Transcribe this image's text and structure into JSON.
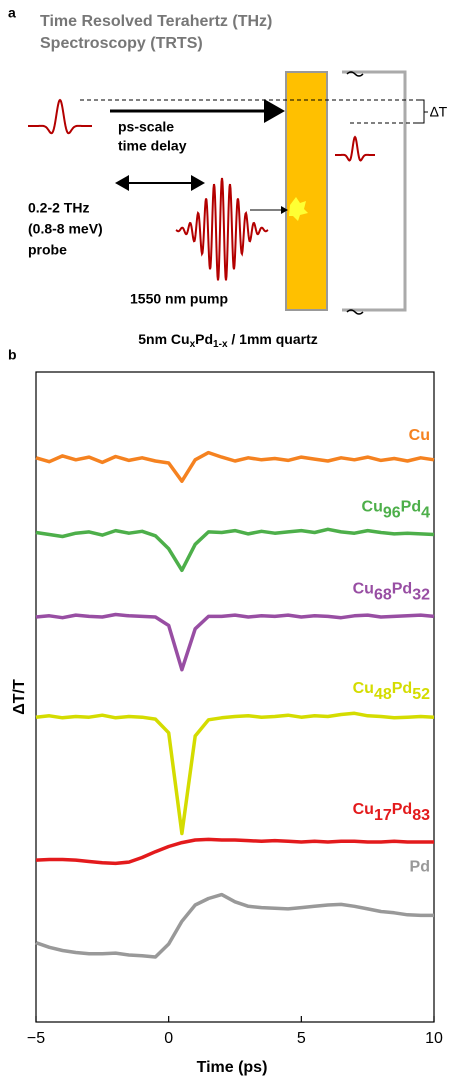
{
  "panel_a": {
    "label": "a",
    "title_lines": [
      "Time Resolved Terahertz (THz)",
      "Spectroscopy (TRTS)"
    ],
    "delay_lines": [
      "ps-scale",
      "time delay"
    ],
    "probe_lines": [
      "0.2-2 THz",
      "(0.8-8 meV)",
      "probe"
    ],
    "pump": "1550 nm pump",
    "delta": "∆T",
    "sample_parts": [
      "5nm Cu",
      "x",
      "Pd",
      "1-x",
      " / 1mm quartz"
    ]
  },
  "chart_data": {
    "type": "line",
    "panel_label": "b",
    "xlabel": "Time (ps)",
    "ylabel": "ΔT/T",
    "x": [
      -5,
      -4.5,
      -4,
      -3.5,
      -3,
      -2.5,
      -2,
      -1.5,
      -1,
      -0.5,
      0,
      0.5,
      1,
      1.5,
      2,
      2.5,
      3,
      3.5,
      4,
      4.5,
      5,
      5.5,
      6,
      6.5,
      7,
      7.5,
      8,
      8.5,
      9,
      9.5,
      10
    ],
    "xlim": [
      -5,
      10
    ],
    "xticks": [
      {
        "value": -5,
        "label": "−5"
      },
      0,
      5,
      10
    ],
    "ylim": [
      0,
      100
    ],
    "series": [
      {
        "name": "Cu",
        "color": "#f58220",
        "values": [
          86.8,
          86.2,
          87.1,
          86.5,
          86.9,
          86.1,
          87.0,
          86.4,
          86.8,
          86.3,
          86.0,
          83.2,
          86.5,
          87.6,
          86.9,
          86.3,
          86.8,
          86.5,
          86.7,
          86.4,
          86.9,
          86.6,
          86.3,
          86.8,
          86.5,
          86.9,
          86.4,
          86.7,
          86.3,
          86.8,
          86.5
        ]
      },
      {
        "name": "Cu96Pd4",
        "color": "#4daf4a",
        "values": [
          75.3,
          75.0,
          74.7,
          75.2,
          75.4,
          74.9,
          75.6,
          75.2,
          75.5,
          74.8,
          72.8,
          69.5,
          73.5,
          75.4,
          75.3,
          75.6,
          75.1,
          75.5,
          75.2,
          75.4,
          75.6,
          75.3,
          75.8,
          75.4,
          75.2,
          75.6,
          75.3,
          75.1,
          75.2,
          75.1,
          75.0
        ]
      },
      {
        "name": "Cu68Pd32",
        "color": "#984ea3",
        "values": [
          62.3,
          62.5,
          62.2,
          62.6,
          62.4,
          62.3,
          62.7,
          62.5,
          62.4,
          62.3,
          61.0,
          54.2,
          60.5,
          62.4,
          62.4,
          62.6,
          62.3,
          62.5,
          62.4,
          62.6,
          62.3,
          62.5,
          62.4,
          62.2,
          62.5,
          62.6,
          62.3,
          62.4,
          62.5,
          62.6,
          62.4
        ]
      },
      {
        "name": "Cu48Pd52",
        "color": "#d4dc00",
        "values": [
          46.9,
          47.1,
          46.8,
          47.0,
          46.9,
          47.2,
          46.8,
          47.0,
          46.9,
          46.6,
          44.5,
          29.0,
          44.0,
          46.5,
          46.8,
          47.0,
          47.1,
          46.9,
          47.0,
          47.2,
          46.9,
          47.1,
          47.0,
          47.3,
          47.5,
          47.1,
          47.0,
          46.8,
          46.9,
          47.0,
          46.9
        ]
      },
      {
        "name": "Cu17Pd83",
        "color": "#e31a1c",
        "values": [
          24.9,
          25.0,
          25.0,
          24.9,
          24.7,
          24.5,
          24.4,
          24.6,
          25.3,
          26.2,
          27.0,
          27.6,
          28.0,
          28.1,
          28.0,
          28.0,
          27.9,
          27.8,
          27.9,
          27.8,
          27.7,
          27.8,
          27.7,
          27.8,
          27.8,
          27.7,
          27.7,
          27.8,
          27.7,
          27.7,
          27.7
        ]
      },
      {
        "name": "Pd",
        "color": "#999999",
        "values": [
          12.2,
          11.5,
          11.0,
          10.7,
          10.5,
          10.5,
          10.6,
          10.3,
          10.2,
          10.0,
          12.0,
          15.5,
          18.0,
          19.0,
          19.6,
          18.5,
          17.8,
          17.6,
          17.5,
          17.4,
          17.6,
          17.8,
          18.0,
          18.1,
          17.8,
          17.4,
          17.0,
          16.8,
          16.5,
          16.4,
          16.4
        ]
      }
    ]
  }
}
